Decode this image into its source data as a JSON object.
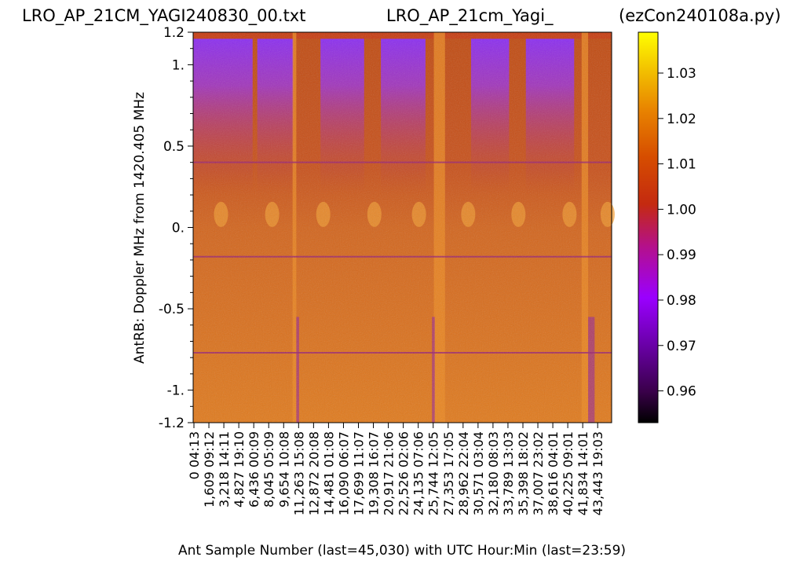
{
  "titles": {
    "left": "LRO_AP_21CM_YAGI240830_00.txt",
    "center": "LRO_AP_21cm_Yagi_",
    "right": "(ezCon240108a.py)"
  },
  "chart_data": {
    "type": "heatmap",
    "xlabel": "Ant Sample Number (last=45,030) with UTC Hour:Min (last=23:59)",
    "ylabel": "AntRB:  Doppler MHz from 1420.405 MHz",
    "xlim": [
      0,
      45030
    ],
    "ylim": [
      -1.2,
      1.2
    ],
    "y_ticks": [
      {
        "value": 1.2,
        "label": "1.2"
      },
      {
        "value": 1.0,
        "label": "1."
      },
      {
        "value": 0.5,
        "label": "0.5"
      },
      {
        "value": 0.0,
        "label": "0."
      },
      {
        "value": -0.5,
        "label": "-0.5"
      },
      {
        "value": -1.0,
        "label": "-1."
      },
      {
        "value": -1.2,
        "label": "-1.2"
      }
    ],
    "x_ticks": [
      {
        "sample": "0",
        "time": "04:13"
      },
      {
        "sample": "1,609",
        "time": "09:12"
      },
      {
        "sample": "3,218",
        "time": "14:11"
      },
      {
        "sample": "4,827",
        "time": "19:10"
      },
      {
        "sample": "6,436",
        "time": "00:09"
      },
      {
        "sample": "8,045",
        "time": "05:09"
      },
      {
        "sample": "9,654",
        "time": "10:08"
      },
      {
        "sample": "11,263",
        "time": "15:08"
      },
      {
        "sample": "12,872",
        "time": "20:08"
      },
      {
        "sample": "14,481",
        "time": "01:08"
      },
      {
        "sample": "16,090",
        "time": "06:07"
      },
      {
        "sample": "17,699",
        "time": "11:07"
      },
      {
        "sample": "19,308",
        "time": "16:07"
      },
      {
        "sample": "20,917",
        "time": "21:06"
      },
      {
        "sample": "22,526",
        "time": "02:06"
      },
      {
        "sample": "24,135",
        "time": "07:06"
      },
      {
        "sample": "25,744",
        "time": "12:05"
      },
      {
        "sample": "27,353",
        "time": "17:05"
      },
      {
        "sample": "28,962",
        "time": "22:04"
      },
      {
        "sample": "30,571",
        "time": "03:04"
      },
      {
        "sample": "32,180",
        "time": "08:03"
      },
      {
        "sample": "33,789",
        "time": "13:03"
      },
      {
        "sample": "35,398",
        "time": "18:02"
      },
      {
        "sample": "37,007",
        "time": "23:02"
      },
      {
        "sample": "38,616",
        "time": "04:01"
      },
      {
        "sample": "40,225",
        "time": "09:01"
      },
      {
        "sample": "41,834",
        "time": "14:01"
      },
      {
        "sample": "43,443",
        "time": "19:03"
      }
    ],
    "colorbar": {
      "range": [
        0.953,
        1.039
      ],
      "colormap": "gnuplot",
      "ticks": [
        {
          "value": 0.96,
          "label": "0.96"
        },
        {
          "value": 0.97,
          "label": "0.97"
        },
        {
          "value": 0.98,
          "label": "0.98"
        },
        {
          "value": 0.99,
          "label": "0.99"
        },
        {
          "value": 1.0,
          "label": "1.00"
        },
        {
          "value": 1.01,
          "label": "1.01"
        },
        {
          "value": 1.02,
          "label": "1.02"
        },
        {
          "value": 1.03,
          "label": "1.03"
        }
      ]
    },
    "features": {
      "low_value_regions_top": [
        [
          0,
          6400
        ],
        [
          6900,
          10800
        ],
        [
          13700,
          18400
        ],
        [
          20200,
          25000
        ],
        [
          29900,
          34000
        ],
        [
          35800,
          41000
        ]
      ],
      "bright_columns": [
        [
          10700,
          11100
        ],
        [
          25900,
          27100
        ],
        [
          41800,
          42500
        ]
      ],
      "dark_columns": [
        [
          11100,
          11400
        ],
        [
          25700,
          26000
        ],
        [
          42500,
          43200
        ]
      ],
      "horizontal_lines_mhz": [
        0.4,
        -0.18,
        -0.77
      ],
      "emission_blips_mhz": 0.08
    }
  }
}
